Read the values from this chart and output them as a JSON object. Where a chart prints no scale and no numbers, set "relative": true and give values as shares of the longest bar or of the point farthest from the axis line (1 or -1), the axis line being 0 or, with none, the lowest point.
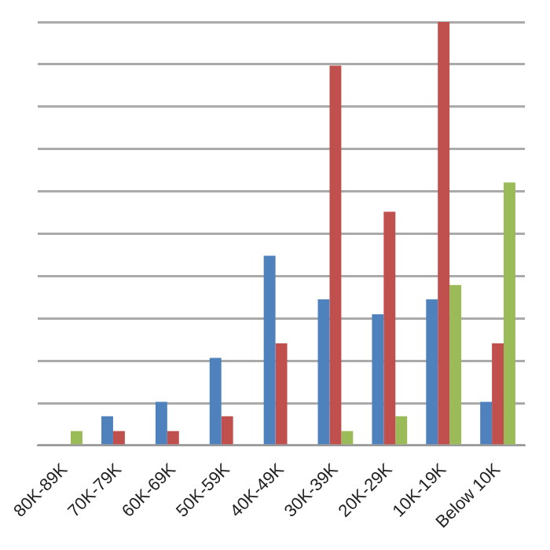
{
  "chart_data": {
    "type": "bar",
    "relative": true,
    "grid": "y",
    "legend": false,
    "categories": [
      "80K-89K",
      "70K-79K",
      "60K-69K",
      "50K-59K",
      "40K-49K",
      "30K-39K",
      "20K-29K",
      "10K-19K",
      "Below 10K"
    ],
    "series": [
      {
        "color": "#4f81bd",
        "values": [
          0,
          0.069,
          0.103,
          0.207,
          0.448,
          0.345,
          0.31,
          0.345,
          0.103
        ]
      },
      {
        "color": "#c0504d",
        "values": [
          0,
          0.034,
          0.034,
          0.069,
          0.241,
          0.897,
          0.552,
          1,
          0.241
        ]
      },
      {
        "color": "#9bbb59",
        "values": [
          0.034,
          0,
          0,
          0,
          0,
          0.034,
          0.069,
          0.379,
          0.621
        ]
      }
    ]
  }
}
